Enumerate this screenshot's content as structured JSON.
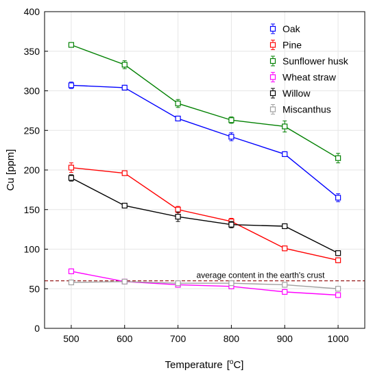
{
  "chart_data": {
    "type": "line",
    "title": "",
    "xlabel": "Temperature",
    "xlabel_unit": "[°C]",
    "ylabel": "Cu [ppm]",
    "x": [
      500,
      600,
      700,
      800,
      900,
      1000
    ],
    "xticks": [
      "500",
      "600",
      "700",
      "800",
      "900",
      "1000"
    ],
    "xlim": [
      450,
      1050
    ],
    "ylim": [
      0,
      400
    ],
    "yticks": [
      "0",
      "50",
      "100",
      "150",
      "200",
      "250",
      "300",
      "350",
      "400"
    ],
    "grid": true,
    "legend_position": "top-right",
    "series": [
      {
        "name": "Oak",
        "color": "#0000ff",
        "values": [
          307,
          304,
          265,
          242,
          220,
          165
        ],
        "errors": [
          4,
          3,
          3,
          5,
          3,
          5
        ]
      },
      {
        "name": "Pine",
        "color": "#ff0000",
        "values": [
          203,
          196,
          150,
          135,
          101,
          86
        ],
        "errors": [
          6,
          3,
          4,
          4,
          3,
          3
        ]
      },
      {
        "name": "Sunflower husk",
        "color": "#008000",
        "values": [
          358,
          333,
          284,
          263,
          255,
          215
        ],
        "errors": [
          3,
          5,
          5,
          4,
          7,
          6
        ]
      },
      {
        "name": "Wheat straw",
        "color": "#ff00ff",
        "values": [
          72,
          59,
          55,
          53,
          46,
          42
        ],
        "errors": [
          3,
          2,
          3,
          3,
          3,
          2
        ]
      },
      {
        "name": "Willow",
        "color": "#000000",
        "values": [
          190,
          155,
          141,
          131,
          129,
          95
        ],
        "errors": [
          4,
          2,
          6,
          4,
          2,
          3
        ]
      },
      {
        "name": "Miscanthus",
        "color": "#a0a0a0",
        "values": [
          58,
          59,
          57,
          57,
          55,
          50
        ],
        "errors": [
          2,
          2,
          2,
          2,
          2,
          2
        ]
      }
    ],
    "reference_line": {
      "y": 60,
      "label": "average content in the earth's crust",
      "color": "#8b0000",
      "style": "dashed"
    }
  }
}
